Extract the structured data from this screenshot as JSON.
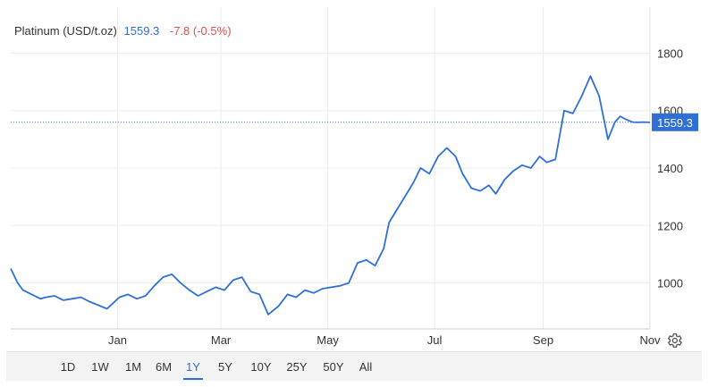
{
  "instrument": {
    "name": "Platinum (USD/t.oz)",
    "last": "1559.3",
    "change": "-7.8 (-0.5%)"
  },
  "colors": {
    "line": "#2f6fd6",
    "change_negative": "#d9534f",
    "grid": "#ececec",
    "axis_text": "#333333"
  },
  "range_selector": {
    "buttons": [
      "1D",
      "1W",
      "1M",
      "6M",
      "1Y",
      "5Y",
      "10Y",
      "25Y",
      "50Y",
      "All"
    ],
    "selected": "1Y"
  },
  "settings_icon": "gear-icon",
  "chart_data": {
    "type": "line",
    "title": "Platinum (USD/t.oz)",
    "xlabel": "",
    "ylabel": "",
    "x_ticks": [
      "Jan",
      "Mar",
      "May",
      "Jul",
      "Sep",
      "Nov"
    ],
    "y_ticks": [
      1000,
      1200,
      1400,
      1600,
      1800
    ],
    "ylim": [
      840,
      1960
    ],
    "y_axis_side": "right",
    "grid": true,
    "last_value": 1559.3,
    "last_value_label": "1559.3",
    "series": [
      {
        "name": "Platinum",
        "x": [
          "2024-11-01",
          "2024-11-05",
          "2024-11-08",
          "2024-11-13",
          "2024-11-18",
          "2024-11-21",
          "2024-11-26",
          "2024-12-01",
          "2024-12-06",
          "2024-12-11",
          "2024-12-16",
          "2024-12-20",
          "2024-12-26",
          "2025-01-02",
          "2025-01-07",
          "2025-01-12",
          "2025-01-17",
          "2025-01-22",
          "2025-01-27",
          "2025-02-01",
          "2025-02-06",
          "2025-02-11",
          "2025-02-16",
          "2025-02-21",
          "2025-02-26",
          "2025-03-03",
          "2025-03-08",
          "2025-03-13",
          "2025-03-18",
          "2025-03-23",
          "2025-03-28",
          "2025-04-03",
          "2025-04-08",
          "2025-04-13",
          "2025-04-18",
          "2025-04-23",
          "2025-04-28",
          "2025-05-03",
          "2025-05-08",
          "2025-05-13",
          "2025-05-18",
          "2025-05-23",
          "2025-05-28",
          "2025-06-02",
          "2025-06-05",
          "2025-06-10",
          "2025-06-14",
          "2025-06-19",
          "2025-06-23",
          "2025-06-28",
          "2025-07-03",
          "2025-07-08",
          "2025-07-13",
          "2025-07-17",
          "2025-07-22",
          "2025-07-27",
          "2025-08-01",
          "2025-08-05",
          "2025-08-10",
          "2025-08-15",
          "2025-08-20",
          "2025-08-25",
          "2025-08-30",
          "2025-09-03",
          "2025-09-08",
          "2025-09-13",
          "2025-09-18",
          "2025-09-23",
          "2025-09-28",
          "2025-10-03",
          "2025-10-08",
          "2025-10-12",
          "2025-10-15",
          "2025-10-18",
          "2025-10-22",
          "2025-10-25",
          "2025-10-28",
          "2025-11-01"
        ],
        "y": [
          1050,
          1000,
          975,
          960,
          945,
          950,
          955,
          940,
          945,
          950,
          935,
          925,
          910,
          950,
          960,
          945,
          955,
          990,
          1020,
          1030,
          1000,
          975,
          955,
          970,
          985,
          975,
          1010,
          1020,
          970,
          960,
          890,
          920,
          960,
          950,
          975,
          965,
          980,
          985,
          990,
          1000,
          1070,
          1080,
          1060,
          1120,
          1210,
          1260,
          1300,
          1350,
          1400,
          1380,
          1440,
          1470,
          1440,
          1380,
          1330,
          1320,
          1340,
          1310,
          1360,
          1390,
          1410,
          1400,
          1440,
          1420,
          1430,
          1600,
          1590,
          1650,
          1720,
          1650,
          1500,
          1560,
          1580,
          1570,
          1560,
          1559,
          1560,
          1559
        ]
      }
    ]
  }
}
